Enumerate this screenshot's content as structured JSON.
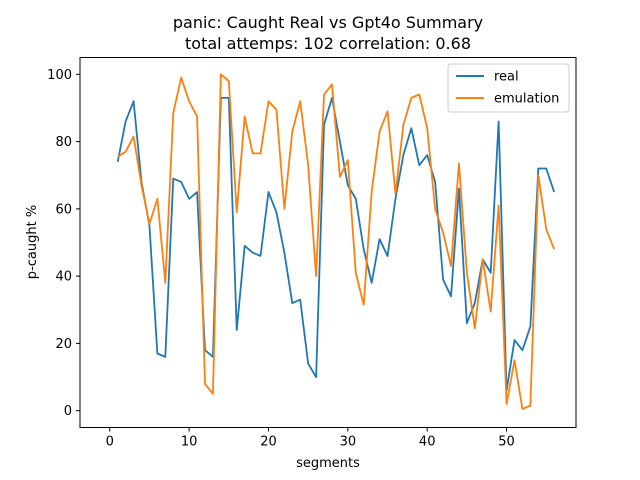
{
  "chart_data": {
    "type": "line",
    "title": "panic: Caught Real vs Gpt4o Summary",
    "subtitle": "total attemps: 102 correlation: 0.68",
    "xlabel": "segments",
    "ylabel": "p-caught %",
    "xlim": [
      -3.75,
      58.75
    ],
    "ylim": [
      -5,
      105
    ],
    "xticks": [
      0,
      10,
      20,
      30,
      40,
      50
    ],
    "yticks": [
      0,
      20,
      40,
      60,
      80,
      100
    ],
    "legend_position": "top-right",
    "grid": false,
    "x": [
      1,
      2,
      3,
      4,
      5,
      6,
      7,
      8,
      9,
      10,
      11,
      12,
      13,
      14,
      15,
      16,
      17,
      18,
      19,
      20,
      21,
      22,
      23,
      24,
      25,
      26,
      27,
      28,
      29,
      30,
      31,
      32,
      33,
      34,
      35,
      36,
      37,
      38,
      39,
      40,
      41,
      42,
      43,
      44,
      45,
      46,
      47,
      48,
      49,
      50,
      51,
      52,
      53,
      54,
      55,
      56
    ],
    "series": [
      {
        "name": "real",
        "color": "#1f77b4",
        "values": [
          74,
          86,
          92,
          68,
          55,
          17,
          16,
          69,
          68,
          63,
          65,
          18,
          16,
          93,
          93,
          24,
          49,
          47,
          46,
          65,
          59,
          47,
          32,
          33,
          14,
          10,
          85,
          93,
          80,
          67,
          63,
          48,
          38,
          51,
          46,
          63,
          76,
          84,
          73,
          76,
          68,
          39,
          34,
          66,
          26,
          32,
          45,
          41,
          86,
          6,
          21,
          18,
          25,
          72,
          72,
          65
        ]
      },
      {
        "name": "emulation",
        "color": "#ff7f0e",
        "values": [
          75.5,
          77,
          81.5,
          67,
          55.5,
          63,
          38,
          88.5,
          99,
          92,
          87.5,
          8,
          5,
          100,
          98,
          59,
          87.5,
          76.5,
          76.5,
          92,
          89.5,
          60,
          83,
          92,
          73,
          40,
          94,
          97,
          69.5,
          74.5,
          41,
          31.5,
          65,
          83,
          89,
          64.5,
          85,
          93,
          94,
          84,
          60,
          53,
          43,
          73.5,
          41,
          24.5,
          45,
          29.5,
          61,
          2,
          15,
          0.5,
          1.5,
          70,
          54,
          48
        ]
      }
    ]
  }
}
